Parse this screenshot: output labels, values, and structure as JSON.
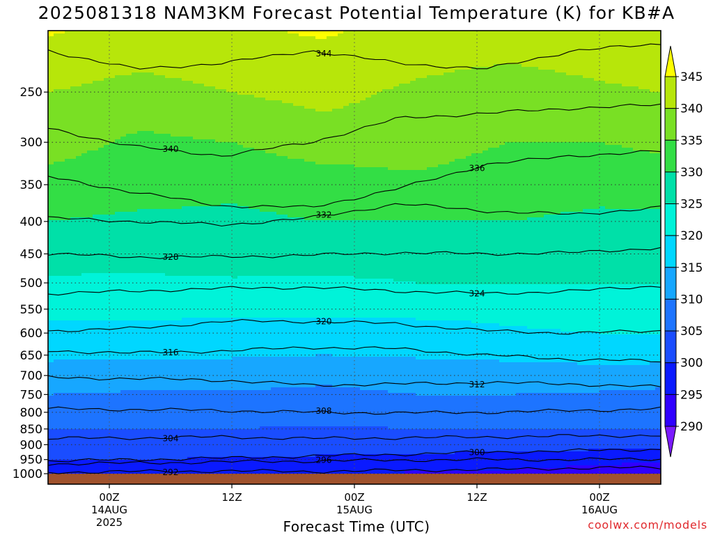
{
  "title": "2025081318 NAM3KM Forecast Potential Temperature (K) for KB#A",
  "xlabel": "Forecast Time (UTC)",
  "credit": "coolwx.com/models",
  "chart_data": {
    "type": "heatmap",
    "title": "2025081318 NAM3KM Forecast Potential Temperature (K) for KB#A",
    "xlabel": "Forecast Time (UTC)",
    "ylabel": "",
    "y_scale": "log",
    "y_reversed": true,
    "yticks": [
      250,
      300,
      350,
      400,
      450,
      500,
      550,
      600,
      650,
      700,
      750,
      800,
      850,
      900,
      950,
      1000
    ],
    "ylim": [
      1000,
      200
    ],
    "x_start_hour": 18,
    "xlim_hours": [
      18,
      78
    ],
    "xticks": [
      {
        "hour": 24,
        "lines": [
          "00Z",
          "14AUG",
          "2025"
        ]
      },
      {
        "hour": 36,
        "lines": [
          "12Z"
        ]
      },
      {
        "hour": 48,
        "lines": [
          "00Z",
          "15AUG"
        ]
      },
      {
        "hour": 60,
        "lines": [
          "12Z"
        ]
      },
      {
        "hour": 72,
        "lines": [
          "00Z",
          "16AUG"
        ]
      }
    ],
    "colorbar": {
      "levels": [
        290,
        295,
        300,
        305,
        310,
        315,
        320,
        325,
        330,
        335,
        340,
        345
      ],
      "labels": [
        "290",
        "295",
        "300",
        "305",
        "310",
        "315",
        "320",
        "325",
        "330",
        "335",
        "340",
        "345"
      ],
      "colors": [
        "#7a1aff",
        "#2f00ff",
        "#0a1aff",
        "#1a4dff",
        "#1d74ff",
        "#17a7ff",
        "#00d7ff",
        "#00f3d9",
        "#00e0a8",
        "#33de45",
        "#79e024",
        "#b7e60a",
        "#fefe00"
      ]
    },
    "series": [
      {
        "theta": 292,
        "pressure": [
          995,
          992,
          990,
          992,
          988,
          985,
          980,
          978
        ]
      },
      {
        "theta": 296,
        "pressure": [
          965,
          962,
          958,
          955,
          952,
          950,
          950,
          948
        ]
      },
      {
        "theta": 300,
        "pressure": [
          955,
          950,
          945,
          938,
          932,
          925,
          920,
          915
        ]
      },
      {
        "theta": 304,
        "pressure": [
          880,
          878,
          875,
          880,
          878,
          875,
          872,
          870
        ]
      },
      {
        "theta": 308,
        "pressure": [
          790,
          792,
          795,
          800,
          802,
          800,
          795,
          790
        ]
      },
      {
        "theta": 312,
        "pressure": [
          705,
          708,
          712,
          725,
          722,
          718,
          722,
          730
        ]
      },
      {
        "theta": 316,
        "pressure": [
          640,
          645,
          640,
          632,
          635,
          650,
          660,
          665
        ]
      },
      {
        "theta": 320,
        "pressure": [
          595,
          590,
          575,
          575,
          580,
          595,
          600,
          595
        ]
      },
      {
        "theta": 324,
        "pressure": [
          520,
          515,
          510,
          508,
          515,
          520,
          515,
          505
        ]
      },
      {
        "theta": 328,
        "pressure": [
          450,
          455,
          455,
          452,
          448,
          450,
          448,
          440
        ]
      },
      {
        "theta": 332,
        "pressure": [
          395,
          400,
          405,
          395,
          375,
          385,
          390,
          380
        ]
      },
      {
        "theta": 336,
        "pressure": [
          340,
          360,
          378,
          380,
          355,
          325,
          315,
          310
        ]
      },
      {
        "theta": 340,
        "pressure": [
          285,
          305,
          315,
          300,
          275,
          270,
          265,
          262
        ]
      },
      {
        "theta": 344,
        "pressure": [
          215,
          230,
          225,
          215,
          225,
          230,
          215,
          210
        ]
      }
    ],
    "heatmap": {
      "times": [
        18,
        27,
        36,
        45,
        54,
        63,
        72,
        78
      ],
      "levels": [
        200,
        250,
        300,
        350,
        400,
        450,
        500,
        550,
        600,
        650,
        700,
        750,
        800,
        850,
        900,
        950,
        1000
      ],
      "values": [
        [
          345.5,
          343.5,
          344.5,
          345.5,
          343.5,
          343,
          344,
          345
        ],
        [
          340,
          338,
          340,
          341.5,
          339,
          337,
          339,
          340
        ],
        [
          337,
          334,
          335,
          337.5,
          337,
          335,
          335,
          336
        ],
        [
          333,
          332,
          331,
          332.5,
          334,
          332.5,
          331.5,
          332
        ],
        [
          330,
          329,
          329,
          330,
          330,
          330,
          329,
          329
        ],
        [
          327.5,
          327,
          327,
          328,
          327,
          327.5,
          327,
          327
        ],
        [
          324,
          324,
          324.5,
          324,
          325,
          325,
          325,
          325
        ],
        [
          321,
          321,
          321,
          321,
          321,
          321,
          322,
          323
        ],
        [
          319,
          319,
          318,
          318.5,
          318.5,
          319.5,
          320,
          320
        ],
        [
          316,
          315.5,
          315.5,
          315,
          315.5,
          316,
          317,
          317
        ],
        [
          312.5,
          312,
          312,
          311,
          312,
          312.5,
          312.5,
          312
        ],
        [
          310,
          309.5,
          309.5,
          309,
          310,
          310,
          309.5,
          309
        ],
        [
          307,
          307,
          307,
          307,
          307,
          307.5,
          307.5,
          307
        ],
        [
          305,
          305,
          305,
          304.5,
          305,
          305,
          305,
          305
        ],
        [
          303.5,
          303,
          303,
          302.5,
          302,
          302,
          301.5,
          301.5
        ],
        [
          300,
          300,
          299.5,
          299,
          298.5,
          298,
          297,
          296
        ],
        [
          297.5,
          297,
          296.5,
          295.5,
          294.5,
          294,
          292,
          290
        ]
      ]
    }
  }
}
